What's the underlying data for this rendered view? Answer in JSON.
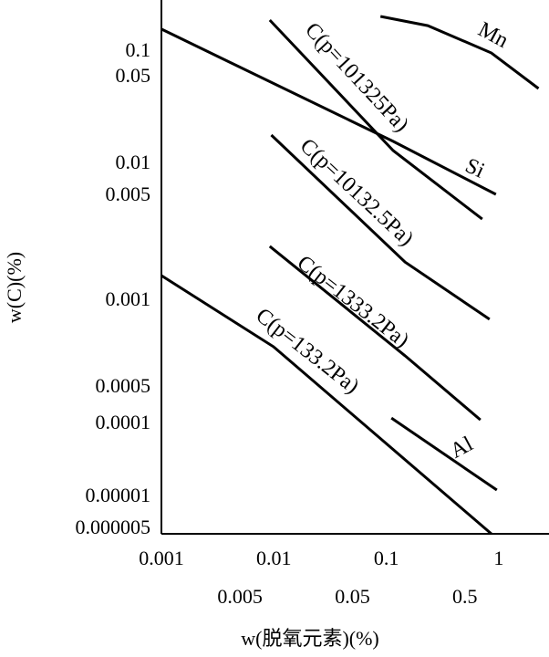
{
  "chart_data": {
    "type": "line",
    "xlabel": "w(脱氧元素)(%)",
    "ylabel": "w(C)(%)",
    "xscale": "log",
    "yscale": "log",
    "xlim": [
      0.001,
      2.8
    ],
    "ylim": [
      4.5e-06,
      0.4
    ],
    "xticks": [
      0.001,
      0.01,
      0.1,
      1
    ],
    "xticks_secondary": [
      0.005,
      0.05,
      0.5
    ],
    "yticks": [
      0.1,
      0.05,
      0.01,
      0.005,
      0.001,
      0.0005,
      0.0001,
      1e-05,
      5e-06
    ],
    "grid": false,
    "series": [
      {
        "name": "Mn",
        "color": "#000000",
        "x": [
          0.0888,
          0.234,
          0.86,
          2.26
        ],
        "values": [
          0.258,
          0.202,
          0.0975,
          0.0408
        ]
      },
      {
        "name": "Si",
        "color": "#000000",
        "x": [
          0.001,
          0.115,
          0.944
        ],
        "values": [
          0.184,
          0.0153,
          0.0052
        ]
      },
      {
        "name": "C(p=101325Pa)",
        "color": "#000000",
        "x": [
          0.0092,
          0.115,
          0.714
        ],
        "values": [
          0.234,
          0.0129,
          0.00352
        ]
      },
      {
        "name": "C(p=10132.5Pa)",
        "color": "#000000",
        "x": [
          0.0095,
          0.147,
          0.829
        ],
        "values": [
          0.0172,
          0.00182,
          0.000865
        ]
      },
      {
        "name": "C(p=1333.2Pa)",
        "color": "#000000",
        "x": [
          0.0092,
          0.147,
          0.688
        ],
        "values": [
          0.00232,
          0.000646,
          0.000122
        ]
      },
      {
        "name": "C(p=133.2Pa)",
        "color": "#000000",
        "x": [
          0.001,
          0.0099,
          0.86
        ],
        "values": [
          0.00148,
          0.000695,
          4.5e-06
        ]
      },
      {
        "name": "Al",
        "color": "#000000",
        "x": [
          0.111,
          0.962
        ],
        "values": [
          0.000132,
          1.26e-05
        ]
      }
    ]
  }
}
